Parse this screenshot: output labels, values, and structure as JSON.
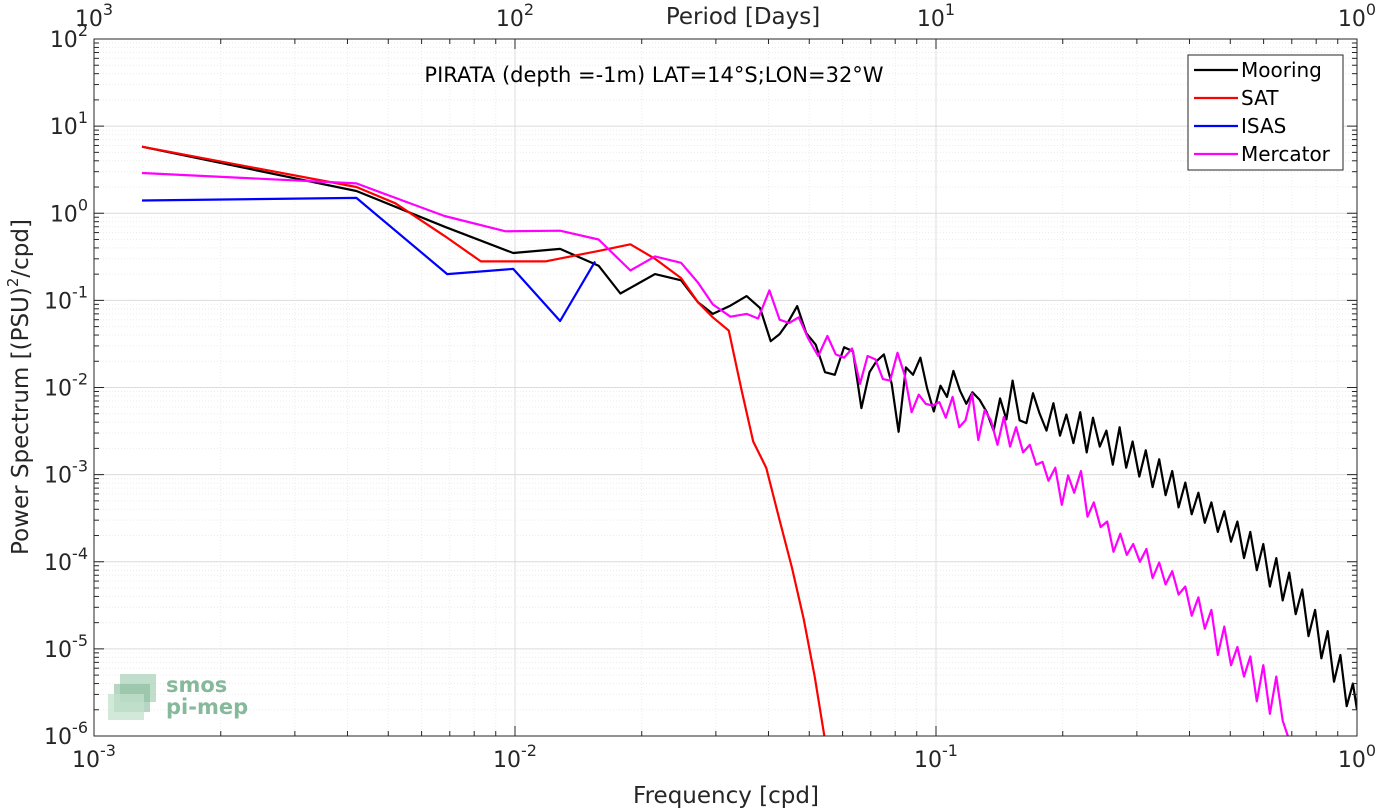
{
  "chart_data": {
    "type": "line",
    "title": "PIRATA (depth =-1m) LAT=14°S;LON=32°W",
    "xlabel": "Frequency [cpd]",
    "ylabel": "Power Spectrum [(PSU)",
    "ylabel_sup": "2",
    "ylabel_tail": "/cpd]",
    "top_xlabel": "Period [Days]",
    "x_scale": "log",
    "y_scale": "log",
    "xlim": [
      0.001,
      1
    ],
    "ylim": [
      1e-06,
      100
    ],
    "grid": true,
    "legend_position": "top-right",
    "x_ticks": [
      {
        "base": "10",
        "exp": "-3"
      },
      {
        "base": "10",
        "exp": "-2"
      },
      {
        "base": "10",
        "exp": "-1"
      },
      {
        "base": "10",
        "exp": "0"
      }
    ],
    "y_ticks": [
      {
        "base": "10",
        "exp": "-6"
      },
      {
        "base": "10",
        "exp": "-5"
      },
      {
        "base": "10",
        "exp": "-4"
      },
      {
        "base": "10",
        "exp": "-3"
      },
      {
        "base": "10",
        "exp": "-2"
      },
      {
        "base": "10",
        "exp": "-1"
      },
      {
        "base": "10",
        "exp": "0"
      },
      {
        "base": "10",
        "exp": "1"
      },
      {
        "base": "10",
        "exp": "2"
      }
    ],
    "top_ticks": [
      {
        "base": "10",
        "exp": "3"
      },
      {
        "base": "10",
        "exp": "2"
      },
      {
        "base": "10",
        "exp": "1"
      },
      {
        "base": "10",
        "exp": "0"
      }
    ],
    "series": [
      {
        "name": "Mooring",
        "color": "#000000",
        "points": [
          [
            0.0013,
            5.8
          ],
          [
            0.0042,
            1.8
          ],
          [
            0.0068,
            0.7
          ],
          [
            0.0099,
            0.35
          ],
          [
            0.0128,
            0.39
          ],
          [
            0.0158,
            0.25
          ],
          [
            0.0178,
            0.12
          ],
          [
            0.0215,
            0.2
          ],
          [
            0.0248,
            0.17
          ],
          [
            0.0272,
            0.095
          ],
          [
            0.0295,
            0.07
          ],
          [
            0.0325,
            0.087
          ],
          [
            0.0355,
            0.112
          ],
          [
            0.0382,
            0.082
          ],
          [
            0.0405,
            0.034
          ],
          [
            0.0425,
            0.041
          ],
          [
            0.0445,
            0.056
          ],
          [
            0.0468,
            0.086
          ],
          [
            0.0492,
            0.042
          ],
          [
            0.0518,
            0.031
          ],
          [
            0.0545,
            0.015
          ],
          [
            0.0575,
            0.014
          ],
          [
            0.0605,
            0.029
          ],
          [
            0.0635,
            0.026
          ],
          [
            0.0665,
            0.0058
          ],
          [
            0.0695,
            0.015
          ],
          [
            0.0722,
            0.02
          ],
          [
            0.0752,
            0.024
          ],
          [
            0.0785,
            0.011
          ],
          [
            0.0815,
            0.0031
          ],
          [
            0.0848,
            0.017
          ],
          [
            0.0882,
            0.014
          ],
          [
            0.0918,
            0.022
          ],
          [
            0.0952,
            0.0099
          ],
          [
            0.0988,
            0.0053
          ],
          [
            0.1025,
            0.0105
          ],
          [
            0.1062,
            0.0078
          ],
          [
            0.11,
            0.0155
          ],
          [
            0.114,
            0.0092
          ],
          [
            0.118,
            0.0065
          ],
          [
            0.122,
            0.0088
          ],
          [
            0.127,
            0.0072
          ],
          [
            0.132,
            0.0052
          ],
          [
            0.137,
            0.0032
          ],
          [
            0.142,
            0.0075
          ],
          [
            0.147,
            0.0043
          ],
          [
            0.152,
            0.012
          ],
          [
            0.158,
            0.0042
          ],
          [
            0.164,
            0.0039
          ],
          [
            0.17,
            0.0086
          ],
          [
            0.176,
            0.0051
          ],
          [
            0.183,
            0.0032
          ],
          [
            0.19,
            0.0066
          ],
          [
            0.197,
            0.0028
          ],
          [
            0.204,
            0.0049
          ],
          [
            0.212,
            0.0023
          ],
          [
            0.22,
            0.0052
          ],
          [
            0.228,
            0.0018
          ],
          [
            0.236,
            0.0045
          ],
          [
            0.245,
            0.0021
          ],
          [
            0.254,
            0.0032
          ],
          [
            0.263,
            0.0013
          ],
          [
            0.273,
            0.0035
          ],
          [
            0.283,
            0.0012
          ],
          [
            0.293,
            0.0024
          ],
          [
            0.304,
            0.00095
          ],
          [
            0.315,
            0.0019
          ],
          [
            0.327,
            0.00072
          ],
          [
            0.339,
            0.0015
          ],
          [
            0.351,
            0.00058
          ],
          [
            0.364,
            0.0011
          ],
          [
            0.377,
            0.00042
          ],
          [
            0.391,
            0.00081
          ],
          [
            0.405,
            0.00035
          ],
          [
            0.42,
            0.00062
          ],
          [
            0.435,
            0.00028
          ],
          [
            0.451,
            0.00048
          ],
          [
            0.467,
            0.00022
          ],
          [
            0.484,
            0.00038
          ],
          [
            0.502,
            0.00017
          ],
          [
            0.52,
            0.00029
          ],
          [
            0.539,
            0.00011
          ],
          [
            0.558,
            0.00022
          ],
          [
            0.578,
            8e-05
          ],
          [
            0.599,
            0.00016
          ],
          [
            0.621,
            5.2e-05
          ],
          [
            0.643,
            0.00011
          ],
          [
            0.666,
            3.6e-05
          ],
          [
            0.69,
            7.5e-05
          ],
          [
            0.715,
            2.5e-05
          ],
          [
            0.741,
            4.8e-05
          ],
          [
            0.767,
            1.4e-05
          ],
          [
            0.795,
            2.8e-05
          ],
          [
            0.823,
            7.8e-06
          ],
          [
            0.852,
            1.6e-05
          ],
          [
            0.882,
            4.2e-06
          ],
          [
            0.913,
            8.5e-06
          ],
          [
            0.945,
            2.2e-06
          ],
          [
            0.978,
            4e-06
          ],
          [
            1.0,
            2e-06
          ]
        ]
      },
      {
        "name": "SAT",
        "color": "#ff0000",
        "points": [
          [
            0.0013,
            5.8
          ],
          [
            0.0042,
            2.0
          ],
          [
            0.0052,
            1.3
          ],
          [
            0.0068,
            0.55
          ],
          [
            0.0083,
            0.28
          ],
          [
            0.0118,
            0.28
          ],
          [
            0.0158,
            0.37
          ],
          [
            0.0188,
            0.44
          ],
          [
            0.0215,
            0.3
          ],
          [
            0.0248,
            0.18
          ],
          [
            0.0272,
            0.095
          ],
          [
            0.0295,
            0.064
          ],
          [
            0.0322,
            0.045
          ],
          [
            0.0345,
            0.0095
          ],
          [
            0.0368,
            0.0024
          ],
          [
            0.0395,
            0.0012
          ],
          [
            0.0425,
            0.0003
          ],
          [
            0.0455,
            8.5e-05
          ],
          [
            0.0485,
            2.2e-05
          ],
          [
            0.0515,
            4.8e-06
          ],
          [
            0.0545,
            9e-07
          ]
        ]
      },
      {
        "name": "ISAS",
        "color": "#0000ff",
        "points": [
          [
            0.0013,
            1.4
          ],
          [
            0.0042,
            1.5
          ],
          [
            0.0069,
            0.2
          ],
          [
            0.0099,
            0.23
          ],
          [
            0.0128,
            0.058
          ],
          [
            0.0155,
            0.28
          ]
        ]
      },
      {
        "name": "Mercator",
        "color": "#ff00ff",
        "points": [
          [
            0.0013,
            2.9
          ],
          [
            0.0042,
            2.2
          ],
          [
            0.0052,
            1.5
          ],
          [
            0.0068,
            0.93
          ],
          [
            0.0095,
            0.62
          ],
          [
            0.0128,
            0.63
          ],
          [
            0.0158,
            0.5
          ],
          [
            0.0188,
            0.22
          ],
          [
            0.0215,
            0.32
          ],
          [
            0.0248,
            0.27
          ],
          [
            0.0272,
            0.16
          ],
          [
            0.0295,
            0.09
          ],
          [
            0.0325,
            0.065
          ],
          [
            0.0355,
            0.07
          ],
          [
            0.0378,
            0.062
          ],
          [
            0.0402,
            0.13
          ],
          [
            0.0425,
            0.06
          ],
          [
            0.0448,
            0.055
          ],
          [
            0.0472,
            0.064
          ],
          [
            0.0498,
            0.036
          ],
          [
            0.0525,
            0.023
          ],
          [
            0.0552,
            0.039
          ],
          [
            0.0578,
            0.024
          ],
          [
            0.0605,
            0.022
          ],
          [
            0.0632,
            0.028
          ],
          [
            0.066,
            0.011
          ],
          [
            0.0688,
            0.023
          ],
          [
            0.0718,
            0.021
          ],
          [
            0.0748,
            0.0125
          ],
          [
            0.0778,
            0.012
          ],
          [
            0.081,
            0.025
          ],
          [
            0.0842,
            0.014
          ],
          [
            0.0875,
            0.0052
          ],
          [
            0.091,
            0.0083
          ],
          [
            0.0945,
            0.0065
          ],
          [
            0.098,
            0.0062
          ],
          [
            0.1018,
            0.0068
          ],
          [
            0.1055,
            0.0045
          ],
          [
            0.1095,
            0.0078
          ],
          [
            0.1135,
            0.0035
          ],
          [
            0.1175,
            0.0042
          ],
          [
            0.1218,
            0.0085
          ],
          [
            0.126,
            0.0025
          ],
          [
            0.1305,
            0.0055
          ],
          [
            0.135,
            0.0042
          ],
          [
            0.14,
            0.0022
          ],
          [
            0.145,
            0.0046
          ],
          [
            0.15,
            0.0021
          ],
          [
            0.155,
            0.0035
          ],
          [
            0.161,
            0.0018
          ],
          [
            0.167,
            0.0022
          ],
          [
            0.173,
            0.0013
          ],
          [
            0.179,
            0.0014
          ],
          [
            0.185,
            0.00085
          ],
          [
            0.192,
            0.0012
          ],
          [
            0.199,
            0.00045
          ],
          [
            0.206,
            0.00098
          ],
          [
            0.213,
            0.00062
          ],
          [
            0.221,
            0.0011
          ],
          [
            0.229,
            0.00033
          ],
          [
            0.237,
            0.00048
          ],
          [
            0.246,
            0.00025
          ],
          [
            0.255,
            0.00029
          ],
          [
            0.264,
            0.00013
          ],
          [
            0.274,
            0.00021
          ],
          [
            0.284,
            0.00012
          ],
          [
            0.294,
            0.00016
          ],
          [
            0.305,
            0.0001
          ],
          [
            0.316,
            0.00014
          ],
          [
            0.327,
            6.5e-05
          ],
          [
            0.339,
            9.8e-05
          ],
          [
            0.351,
            5.5e-05
          ],
          [
            0.364,
            7.8e-05
          ],
          [
            0.377,
            4.2e-05
          ],
          [
            0.391,
            5.2e-05
          ],
          [
            0.405,
            2.4e-05
          ],
          [
            0.42,
            3.9e-05
          ],
          [
            0.435,
            1.7e-05
          ],
          [
            0.451,
            2.8e-05
          ],
          [
            0.467,
            8.5e-06
          ],
          [
            0.484,
            1.8e-05
          ],
          [
            0.502,
            6.5e-06
          ],
          [
            0.52,
            1.05e-05
          ],
          [
            0.539,
            4.8e-06
          ],
          [
            0.558,
            8.2e-06
          ],
          [
            0.578,
            2.5e-06
          ],
          [
            0.599,
            6.5e-06
          ],
          [
            0.621,
            1.8e-06
          ],
          [
            0.643,
            4.8e-06
          ],
          [
            0.666,
            1.5e-06
          ],
          [
            0.69,
            9e-07
          ]
        ]
      }
    ]
  },
  "logo": {
    "line1": "smos",
    "line2": "pi-mep",
    "color": "#86b99a"
  }
}
